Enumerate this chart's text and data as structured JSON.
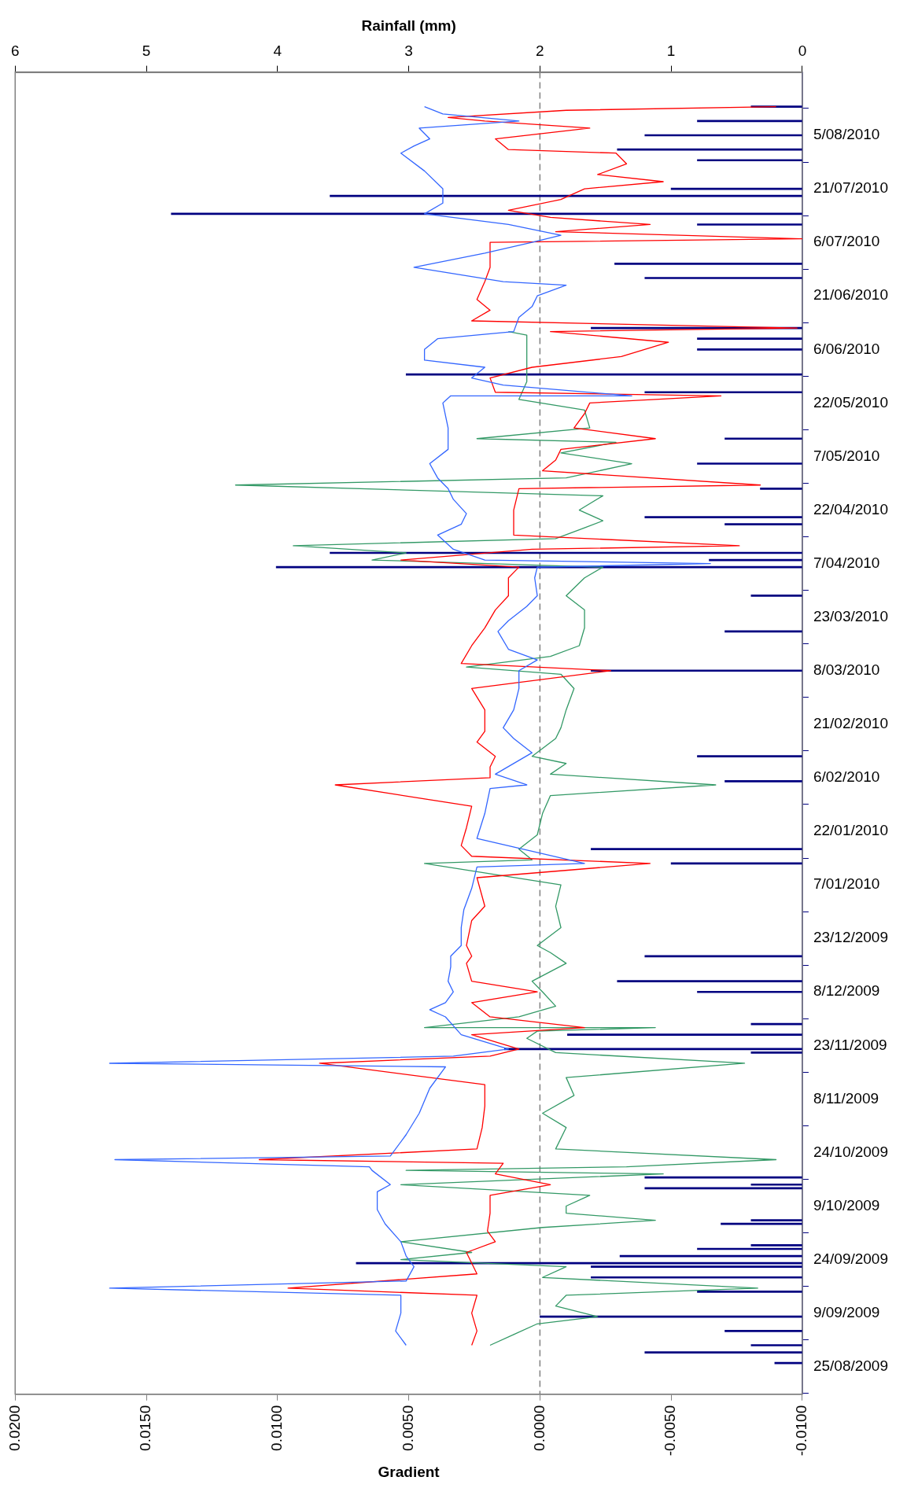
{
  "chart_data": {
    "type": "line",
    "orientation": "horizontal",
    "xlabel": "Gradient",
    "x2label": "Rainfall (mm)",
    "xlim": [
      0.02,
      -0.01
    ],
    "xticks": [
      {
        "value": 0.02,
        "label": "0.0200"
      },
      {
        "value": 0.015,
        "label": "0.0150"
      },
      {
        "value": 0.01,
        "label": "0.0100"
      },
      {
        "value": 0.005,
        "label": "0.0050"
      },
      {
        "value": 0,
        "label": "0.0000"
      },
      {
        "value": -0.005,
        "label": "-0.0050"
      },
      {
        "value": -0.01,
        "label": "-0.0100"
      }
    ],
    "x2lim": [
      6,
      0
    ],
    "x2ticks": [
      6,
      5,
      4,
      3,
      2,
      1,
      0
    ],
    "ylim": [
      "2009-08-25",
      "2010-08-15"
    ],
    "yticks": [
      {
        "value": "2009-08-25",
        "label": "25/08/2009"
      },
      {
        "value": "2009-09-09",
        "label": "9/09/2009"
      },
      {
        "value": "2009-09-24",
        "label": "24/09/2009"
      },
      {
        "value": "2009-10-09",
        "label": "9/10/2009"
      },
      {
        "value": "2009-10-24",
        "label": "24/10/2009"
      },
      {
        "value": "2009-11-08",
        "label": "8/11/2009"
      },
      {
        "value": "2009-11-23",
        "label": "23/11/2009"
      },
      {
        "value": "2009-12-08",
        "label": "8/12/2009"
      },
      {
        "value": "2009-12-23",
        "label": "23/12/2009"
      },
      {
        "value": "2010-01-07",
        "label": "7/01/2010"
      },
      {
        "value": "2010-01-22",
        "label": "22/01/2010"
      },
      {
        "value": "2010-02-06",
        "label": "6/02/2010"
      },
      {
        "value": "2010-02-21",
        "label": "21/02/2010"
      },
      {
        "value": "2010-03-08",
        "label": "8/03/2010"
      },
      {
        "value": "2010-03-23",
        "label": "23/03/2010"
      },
      {
        "value": "2010-04-07",
        "label": "7/04/2010"
      },
      {
        "value": "2010-04-22",
        "label": "22/04/2010"
      },
      {
        "value": "2010-05-07",
        "label": "7/05/2010"
      },
      {
        "value": "2010-05-22",
        "label": "22/05/2010"
      },
      {
        "value": "2010-06-06",
        "label": "6/06/2010"
      },
      {
        "value": "2010-06-21",
        "label": "21/06/2010"
      },
      {
        "value": "2010-07-06",
        "label": "6/07/2010"
      },
      {
        "value": "2010-07-21",
        "label": "21/07/2010"
      },
      {
        "value": "2010-08-05",
        "label": "5/08/2010"
      }
    ],
    "ref_lines": [
      {
        "axis": "x",
        "value": 0,
        "color": "#808080",
        "line_style": "dashed"
      }
    ],
    "series": [
      {
        "color": "#3366ff",
        "x": [
          "2009-08-31",
          "2009-09-04",
          "2009-09-09",
          "2009-09-14",
          "2009-09-16",
          "2009-09-18",
          "2009-09-22",
          "2009-09-25",
          "2009-09-29",
          "2009-10-04",
          "2009-10-08",
          "2009-10-13",
          "2009-10-15",
          "2009-10-19",
          "2009-10-20",
          "2009-10-22",
          "2009-10-23",
          "2009-10-29",
          "2009-11-04",
          "2009-11-11",
          "2009-11-17",
          "2009-11-18",
          "2009-11-20",
          "2009-11-22",
          "2009-11-26",
          "2009-12-01",
          "2009-12-03",
          "2009-12-05",
          "2009-12-08",
          "2009-12-11",
          "2009-12-15",
          "2009-12-18",
          "2009-12-21",
          "2009-12-26",
          "2009-12-31",
          "2010-01-06",
          "2010-01-12",
          "2010-01-13",
          "2010-01-20",
          "2010-01-27",
          "2010-02-03",
          "2010-02-04",
          "2010-02-07",
          "2010-02-13",
          "2010-02-17",
          "2010-02-20",
          "2010-02-25",
          "2010-03-03",
          "2010-03-08",
          "2010-03-11",
          "2010-03-14",
          "2010-03-19",
          "2010-03-22",
          "2010-03-26",
          "2010-03-29",
          "2010-04-03",
          "2010-04-06",
          "2010-04-07",
          "2010-04-08",
          "2010-04-11",
          "2010-04-15",
          "2010-04-18",
          "2010-04-21",
          "2010-04-25",
          "2010-04-28",
          "2010-05-01",
          "2010-05-05",
          "2010-05-09",
          "2010-05-12",
          "2010-05-15",
          "2010-05-22",
          "2010-05-24",
          "2010-05-24",
          "2010-05-27",
          "2010-05-29",
          "2010-06-01",
          "2010-06-03",
          "2010-06-06",
          "2010-06-09",
          "2010-06-11",
          "2010-06-15",
          "2010-06-18",
          "2010-06-21",
          "2010-06-24",
          "2010-06-25",
          "2010-06-29",
          "2010-07-03",
          "2010-07-06",
          "2010-07-08",
          "2010-07-11",
          "2010-07-14",
          "2010-07-17",
          "2010-07-21",
          "2010-07-26",
          "2010-07-31",
          "2010-08-02",
          "2010-08-04",
          "2010-08-07",
          "2010-08-09",
          "2010-08-11",
          "2010-08-13"
        ],
        "values": [
          0.0051,
          0.0055,
          0.0053,
          0.0053,
          0.0164,
          0.0051,
          0.0048,
          0.0051,
          0.0053,
          0.0059,
          0.0062,
          0.0062,
          0.0057,
          0.0064,
          0.0065,
          0.0162,
          0.0057,
          0.0051,
          0.0046,
          0.0042,
          0.0036,
          0.0164,
          0.0033,
          0.0012,
          0.003,
          0.0036,
          0.0042,
          0.0036,
          0.0033,
          0.0035,
          0.0034,
          0.0034,
          0.003,
          0.003,
          0.0029,
          0.0026,
          0.0024,
          -0.0017,
          0.0024,
          0.0021,
          0.0019,
          0.0005,
          0.0017,
          0.0003,
          0.001,
          0.0014,
          0.001,
          0.0008,
          0.0008,
          0.0001,
          0.0012,
          0.0016,
          0.0012,
          0.0005,
          0.0001,
          0.0002,
          0.0001,
          -0.0065,
          0.0021,
          0.0033,
          0.0039,
          0.003,
          0.0028,
          0.0033,
          0.0035,
          0.0039,
          0.0042,
          0.0035,
          0.0035,
          0.0035,
          0.0037,
          0.0034,
          -0.0035,
          0.0014,
          0.0026,
          0.0021,
          0.0044,
          0.0044,
          0.0039,
          0.001,
          0.0008,
          0.0003,
          0.0001,
          -0.001,
          0.0014,
          0.0048,
          0.0021,
          0.0003,
          -0.0008,
          0.0012,
          0.0044,
          0.0037,
          0.0037,
          0.0044,
          0.0053,
          0.0048,
          0.0042,
          0.0046,
          0.0008,
          0.0037,
          0.0044
        ]
      },
      {
        "color": "#ff0000",
        "x": [
          "2009-08-31",
          "2009-09-04",
          "2009-09-09",
          "2009-09-14",
          "2009-09-16",
          "2009-09-20",
          "2009-09-26",
          "2009-09-29",
          "2009-10-02",
          "2009-10-07",
          "2009-10-12",
          "2009-10-15",
          "2009-10-18",
          "2009-10-21",
          "2009-10-22",
          "2009-10-25",
          "2009-10-31",
          "2009-11-06",
          "2009-11-12",
          "2009-11-18",
          "2009-11-20",
          "2009-11-22",
          "2009-11-26",
          "2009-11-28",
          "2009-12-01",
          "2009-12-05",
          "2009-12-08",
          "2009-12-11",
          "2009-12-16",
          "2009-12-18",
          "2009-12-21",
          "2009-12-28",
          "2010-01-01",
          "2010-01-09",
          "2010-01-13",
          "2010-01-15",
          "2010-01-18",
          "2010-01-23",
          "2010-01-29",
          "2010-02-04",
          "2010-02-06",
          "2010-02-09",
          "2010-02-12",
          "2010-02-16",
          "2010-02-19",
          "2010-02-25",
          "2010-03-03",
          "2010-03-08",
          "2010-03-10",
          "2010-03-15",
          "2010-03-20",
          "2010-03-25",
          "2010-03-29",
          "2010-04-03",
          "2010-04-06",
          "2010-04-08",
          "2010-04-11",
          "2010-04-12",
          "2010-04-15",
          "2010-04-18",
          "2010-04-22",
          "2010-04-28",
          "2010-04-29",
          "2010-05-03",
          "2010-05-06",
          "2010-05-09",
          "2010-05-12",
          "2010-05-15",
          "2010-05-19",
          "2010-05-22",
          "2010-05-24",
          "2010-05-25",
          "2010-05-29",
          "2010-06-01",
          "2010-06-04",
          "2010-06-08",
          "2010-06-11",
          "2010-06-12",
          "2010-06-14",
          "2010-06-17",
          "2010-06-20",
          "2010-06-25",
          "2010-06-29",
          "2010-07-03",
          "2010-07-06",
          "2010-07-07",
          "2010-07-09",
          "2010-07-11",
          "2010-07-13",
          "2010-07-15",
          "2010-07-18",
          "2010-07-21",
          "2010-07-23",
          "2010-07-25",
          "2010-07-28",
          "2010-07-31",
          "2010-08-01",
          "2010-08-04",
          "2010-08-07",
          "2010-08-09",
          "2010-08-10",
          "2010-08-12",
          "2010-08-13"
        ],
        "values": [
          0.0026,
          0.0024,
          0.0026,
          0.0024,
          0.0096,
          0.0024,
          0.0028,
          0.0017,
          0.002,
          0.0019,
          0.0019,
          -0.0004,
          0.0017,
          0.0014,
          0.0107,
          0.0024,
          0.0022,
          0.0021,
          0.0021,
          0.0084,
          0.0019,
          0.0008,
          0.0026,
          -0.0017,
          0.0019,
          0.0026,
          0.0001,
          0.0026,
          0.0028,
          0.0026,
          0.0028,
          0.0026,
          0.0021,
          0.0024,
          -0.0042,
          0.0026,
          0.003,
          0.0028,
          0.0026,
          0.0078,
          0.0019,
          0.0019,
          0.0017,
          0.0024,
          0.0021,
          0.0021,
          0.0026,
          -0.0027,
          0.003,
          0.0026,
          0.0021,
          0.0017,
          0.0012,
          0.0012,
          0.0008,
          0.0053,
          0.0003,
          -0.0076,
          0.001,
          0.001,
          0.001,
          0.0008,
          -0.0084,
          -0.0001,
          -0.0006,
          -0.0008,
          -0.0044,
          -0.0013,
          -0.0017,
          -0.0019,
          -0.0069,
          0.0017,
          0.0019,
          0.0003,
          -0.0031,
          -0.0049,
          -0.0004,
          -0.0098,
          0.0026,
          0.0019,
          0.0024,
          0.0021,
          0.0019,
          0.0019,
          0.0019,
          -0.01,
          -0.0006,
          -0.0042,
          -0.0004,
          0.0012,
          -0.0008,
          -0.0017,
          -0.0047,
          -0.0022,
          -0.0033,
          -0.0029,
          0.0012,
          0.0017,
          -0.0019,
          0.0021,
          0.0035,
          -0.001,
          -0.009
        ]
      },
      {
        "color": "#339966",
        "x": [
          "2009-08-31",
          "2009-09-03",
          "2009-09-06",
          "2009-09-08",
          "2009-09-11",
          "2009-09-14",
          "2009-09-16",
          "2009-09-19",
          "2009-09-22",
          "2009-09-24",
          "2009-09-26",
          "2009-09-29",
          "2009-10-03",
          "2009-10-05",
          "2009-10-07",
          "2009-10-09",
          "2009-10-12",
          "2009-10-15",
          "2009-10-18",
          "2009-10-19",
          "2009-10-20",
          "2009-10-22",
          "2009-10-25",
          "2009-10-31",
          "2009-11-04",
          "2009-11-09",
          "2009-11-14",
          "2009-11-18",
          "2009-11-21",
          "2009-11-25",
          "2009-11-27",
          "2009-11-28",
          "2009-11-28",
          "2009-12-01",
          "2009-12-04",
          "2009-12-08",
          "2009-12-11",
          "2009-12-16",
          "2009-12-19",
          "2009-12-21",
          "2009-12-26",
          "2010-01-01",
          "2010-01-07",
          "2010-01-13",
          "2010-01-14",
          "2010-01-17",
          "2010-01-21",
          "2010-01-27",
          "2010-02-01",
          "2010-02-04",
          "2010-02-07",
          "2010-02-10",
          "2010-02-12",
          "2010-02-17",
          "2010-02-20",
          "2010-02-25",
          "2010-03-03",
          "2010-03-07",
          "2010-03-09",
          "2010-03-12",
          "2010-03-15",
          "2010-03-20",
          "2010-03-25",
          "2010-03-29",
          "2010-04-03",
          "2010-04-06",
          "2010-04-08",
          "2010-04-10",
          "2010-04-12",
          "2010-04-14",
          "2010-04-17",
          "2010-04-19",
          "2010-04-22",
          "2010-04-26",
          "2010-04-29",
          "2010-05-01",
          "2010-05-05",
          "2010-05-08",
          "2010-05-11",
          "2010-05-12",
          "2010-05-15",
          "2010-05-20",
          "2010-05-23",
          "2010-05-28",
          "2010-06-01",
          "2010-06-06",
          "2010-06-10",
          "2010-06-11"
        ],
        "values": [
          0.0019,
          0.001,
          0.0001,
          -0.0022,
          -0.0006,
          -0.001,
          -0.0083,
          -0.0001,
          -0.001,
          0.0053,
          0.0026,
          0.0053,
          -0.0001,
          -0.0044,
          -0.001,
          -0.001,
          -0.0019,
          0.0053,
          -0.0047,
          0.0051,
          -0.0033,
          -0.009,
          -0.0006,
          -0.001,
          -0.0001,
          -0.0013,
          -0.001,
          -0.0078,
          -0.0006,
          0.0005,
          0.0001,
          -0.0044,
          0.0044,
          0.0008,
          -0.0006,
          -0.0001,
          0.0003,
          -0.001,
          -0.0004,
          0.0001,
          -0.0008,
          -0.0006,
          -0.0008,
          0.0044,
          0.0003,
          0.0008,
          0.0001,
          -0.0001,
          -0.0004,
          -0.0067,
          -0.0004,
          -0.001,
          0.0003,
          -0.0006,
          -0.0008,
          -0.001,
          -0.0013,
          -0.0008,
          0.0028,
          -0.0004,
          -0.0015,
          -0.0017,
          -0.0017,
          -0.001,
          -0.0017,
          -0.0024,
          0.0064,
          0.0051,
          0.0094,
          -0.0006,
          -0.0017,
          -0.0024,
          -0.0015,
          -0.0024,
          0.0116,
          -0.001,
          -0.0035,
          -0.0008,
          -0.0029,
          0.0024,
          -0.0019,
          -0.0017,
          0.0008,
          0.0005,
          0.0005,
          0.0005,
          0.0005,
          0.0012
        ]
      },
      {
        "type": "bar",
        "axis": "x2",
        "color": "#000080",
        "x": [
          "2009-08-26",
          "2009-08-29",
          "2009-08-31",
          "2009-09-04",
          "2009-09-08",
          "2009-09-15",
          "2009-09-19",
          "2009-09-22",
          "2009-09-23",
          "2009-09-25",
          "2009-09-27",
          "2009-09-28",
          "2009-10-04",
          "2009-10-05",
          "2009-10-14",
          "2009-10-15",
          "2009-10-17",
          "2009-11-21",
          "2009-11-22",
          "2009-11-26",
          "2009-11-29",
          "2009-12-08",
          "2009-12-11",
          "2009-12-18",
          "2010-01-13",
          "2010-01-17",
          "2010-02-05",
          "2010-02-12",
          "2010-03-08",
          "2010-03-19",
          "2010-03-29",
          "2010-04-06",
          "2010-04-08",
          "2010-04-10",
          "2010-04-18",
          "2010-04-20",
          "2010-04-28",
          "2010-05-05",
          "2010-05-12",
          "2010-05-25",
          "2010-05-30",
          "2010-06-06",
          "2010-06-09",
          "2010-06-12",
          "2010-06-26",
          "2010-06-30",
          "2010-07-11",
          "2010-07-14",
          "2010-07-19",
          "2010-07-21",
          "2010-07-29",
          "2010-08-01",
          "2010-08-05",
          "2010-08-09",
          "2010-08-13"
        ],
        "values": [
          0.21,
          1.2,
          0.39,
          0.59,
          2.0,
          0.8,
          1.61,
          1.61,
          3.4,
          1.39,
          0.8,
          0.39,
          0.62,
          0.39,
          1.2,
          0.39,
          1.2,
          0.39,
          2.27,
          1.79,
          0.39,
          0.8,
          1.41,
          1.2,
          1.0,
          1.61,
          0.59,
          0.8,
          1.61,
          0.59,
          0.39,
          4.01,
          0.71,
          3.6,
          0.59,
          1.2,
          0.32,
          0.8,
          0.59,
          1.2,
          3.02,
          0.8,
          0.8,
          1.61,
          1.2,
          1.43,
          0.8,
          4.81,
          3.6,
          1.0,
          0.8,
          1.41,
          1.2,
          0.8,
          0.39
        ]
      }
    ]
  }
}
